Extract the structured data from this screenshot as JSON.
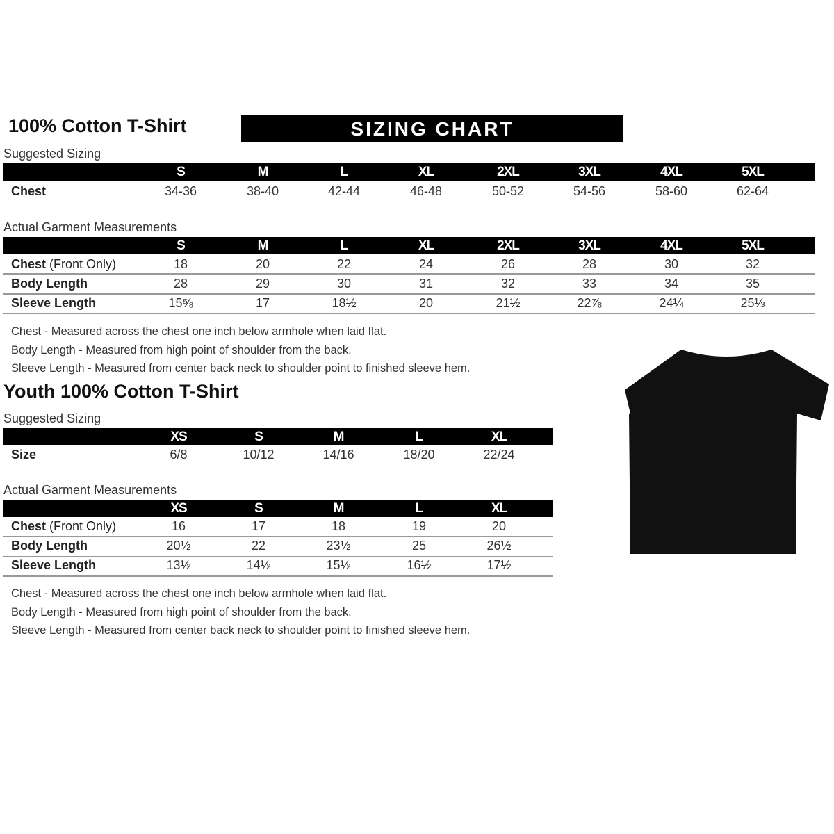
{
  "adult": {
    "title": "100% Cotton T-Shirt",
    "banner": "SIZING CHART",
    "suggested_label": "Suggested Sizing",
    "sizes": [
      "S",
      "M",
      "L",
      "XL",
      "2XL",
      "3XL",
      "4XL",
      "5XL"
    ],
    "suggested_rows": [
      {
        "label": "Chest",
        "values": [
          "34-36",
          "38-40",
          "42-44",
          "46-48",
          "50-52",
          "54-56",
          "58-60",
          "62-64"
        ]
      }
    ],
    "actual_label": "Actual Garment Measurements",
    "actual_rows": [
      {
        "label": "Chest",
        "label_note": "(Front Only)",
        "values": [
          "18",
          "20",
          "22",
          "24",
          "26",
          "28",
          "30",
          "32"
        ]
      },
      {
        "label": "Body Length",
        "values": [
          "28",
          "29",
          "30",
          "31",
          "32",
          "33",
          "34",
          "35"
        ]
      },
      {
        "label": "Sleeve Length",
        "values": [
          "15⅝",
          "17",
          "18½",
          "20",
          "21½",
          "22⅞",
          "24¼",
          "25⅓"
        ]
      }
    ],
    "notes": [
      "Chest - Measured across the chest one inch below armhole when laid flat.",
      "Body Length - Measured from high point of shoulder from the back.",
      "Sleeve Length - Measured from center back neck to shoulder point to finished sleeve hem."
    ]
  },
  "youth": {
    "title": "Youth 100% Cotton T-Shirt",
    "suggested_label": "Suggested Sizing",
    "sizes": [
      "XS",
      "S",
      "M",
      "L",
      "XL"
    ],
    "suggested_rows": [
      {
        "label": "Size",
        "values": [
          "6/8",
          "10/12",
          "14/16",
          "18/20",
          "22/24"
        ]
      }
    ],
    "actual_label": "Actual Garment Measurements",
    "actual_rows": [
      {
        "label": "Chest",
        "label_note": "(Front Only)",
        "values": [
          "16",
          "17",
          "18",
          "19",
          "20"
        ]
      },
      {
        "label": "Body Length",
        "values": [
          "20½",
          "22",
          "23½",
          "25",
          "26½"
        ]
      },
      {
        "label": "Sleeve Length",
        "values": [
          "13½",
          "14½",
          "15½",
          "16½",
          "17½"
        ]
      }
    ],
    "notes": [
      "Chest - Measured across the chest one inch below armhole when laid flat.",
      "Body Length - Measured from high point of shoulder from the back.",
      "Sleeve Length - Measured from center back neck to shoulder point to finished sleeve hem."
    ]
  },
  "tshirt_color": "#111111"
}
